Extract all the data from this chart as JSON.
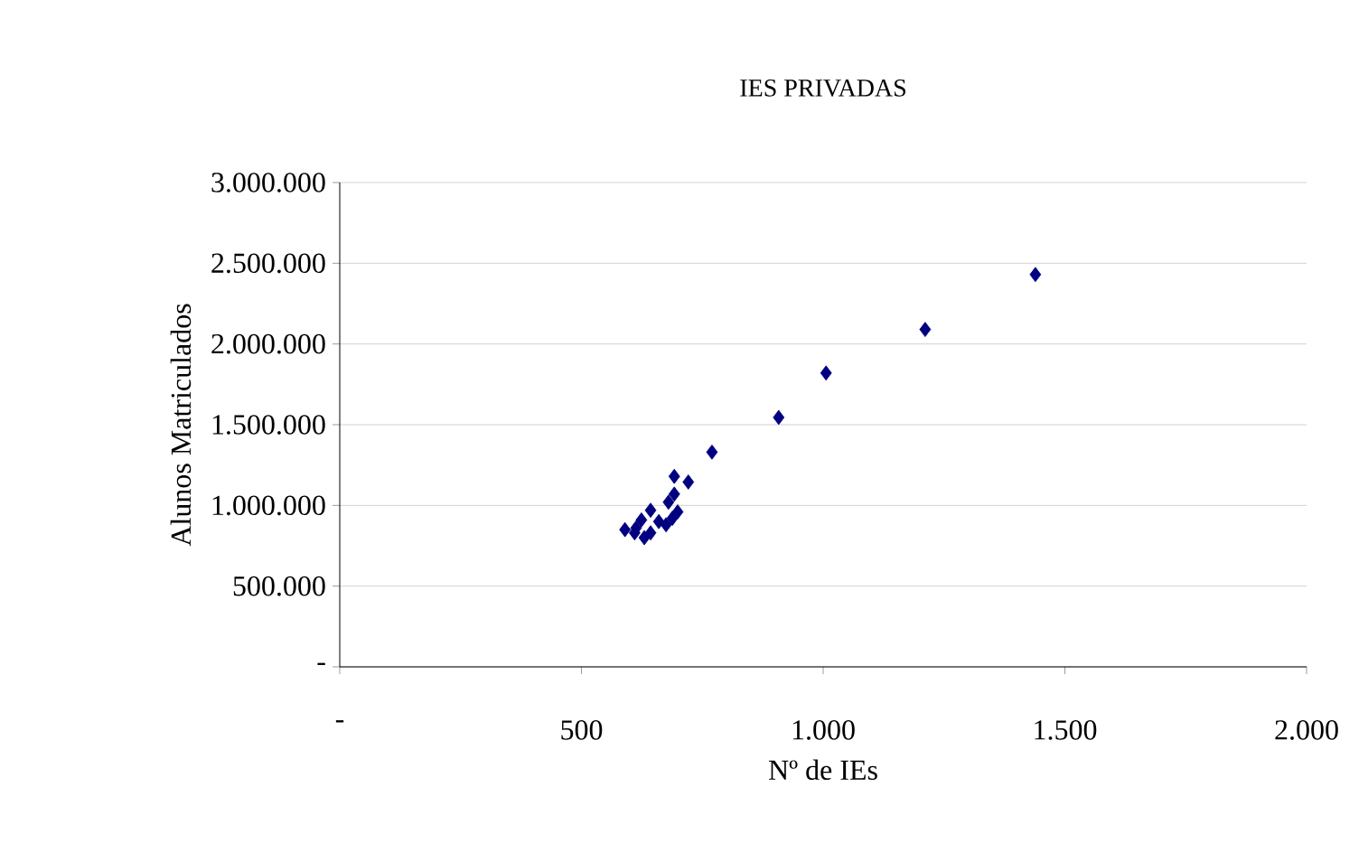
{
  "chart_data": {
    "type": "scatter",
    "title": "IES PRIVADAS",
    "xlabel": "Nº de IEs",
    "ylabel": "Alunos Matriculados",
    "x": [
      1439,
      1211,
      1006,
      908,
      770,
      692,
      721,
      692,
      680,
      643,
      699,
      624,
      688,
      643,
      613,
      590,
      660,
      675,
      630,
      610
    ],
    "values": [
      2430000,
      2090000,
      1820000,
      1545000,
      1330000,
      1180000,
      1145000,
      1070000,
      1020000,
      970000,
      960000,
      910000,
      920000,
      830000,
      860000,
      850000,
      900000,
      880000,
      800000,
      830000
    ],
    "color": "#000080",
    "marker": "diamond",
    "grid": "y",
    "xlim": [
      0,
      2000
    ],
    "xticks": [
      {
        "value": 0,
        "label": "-"
      },
      500,
      {
        "value": 1000,
        "label": "1.000"
      },
      {
        "value": 1500,
        "label": "1.500"
      },
      {
        "value": 2000,
        "label": "2.000"
      }
    ],
    "ylim": [
      0,
      3000000
    ],
    "yticks": [
      {
        "value": 0,
        "label": "-"
      },
      {
        "value": 500000,
        "label": "500.000"
      },
      {
        "value": 1000000,
        "label": "1.000.000"
      },
      {
        "value": 1500000,
        "label": "1.500.000"
      },
      {
        "value": 2000000,
        "label": "2.000.000"
      },
      {
        "value": 2500000,
        "label": "2.500.000"
      },
      {
        "value": 3000000,
        "label": "3.000.000"
      }
    ]
  }
}
